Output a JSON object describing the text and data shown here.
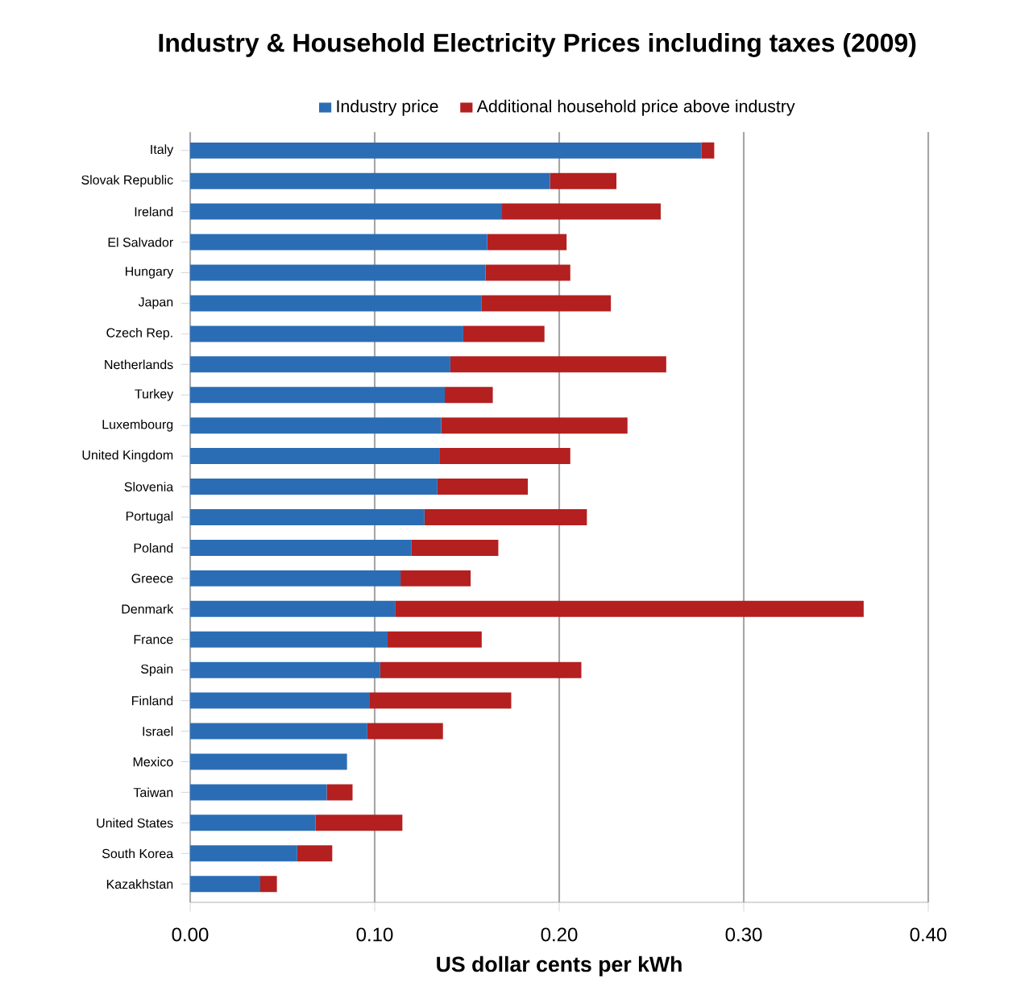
{
  "chart_data": {
    "type": "bar",
    "orientation": "horizontal",
    "stacked": true,
    "title": "Industry & Household Electricity Prices including taxes (2009)",
    "xlabel": "US dollar cents per kWh",
    "categories": [
      "Italy",
      "Slovak Republic",
      "Ireland",
      "El Salvador",
      "Hungary",
      "Japan",
      "Czech Rep.",
      "Netherlands",
      "Turkey",
      "Luxembourg",
      "United Kingdom",
      "Slovenia",
      "Portugal",
      "Poland",
      "Greece",
      "Denmark",
      "France",
      "Spain",
      "Finland",
      "Israel",
      "Mexico",
      "Taiwan",
      "United States",
      "South Korea",
      "Kazakhstan"
    ],
    "series": [
      {
        "name": "Industry price",
        "color": "#2a6db5",
        "values": [
          0.277,
          0.195,
          0.169,
          0.161,
          0.16,
          0.158,
          0.148,
          0.141,
          0.138,
          0.136,
          0.135,
          0.134,
          0.127,
          0.12,
          0.114,
          0.111,
          0.107,
          0.103,
          0.097,
          0.096,
          0.085,
          0.074,
          0.068,
          0.058,
          0.038
        ]
      },
      {
        "name": "Additional household price above industry",
        "color": "#b41f1f",
        "values": [
          0.007,
          0.036,
          0.086,
          0.043,
          0.046,
          0.07,
          0.044,
          0.117,
          0.026,
          0.101,
          0.071,
          0.049,
          0.088,
          0.047,
          0.038,
          0.254,
          0.051,
          0.109,
          0.077,
          0.041,
          0,
          0.014,
          0.047,
          0.019,
          0.009
        ]
      }
    ],
    "xlim": [
      0,
      0.4
    ],
    "xticks": [
      {
        "value": 0,
        "label": "0.00"
      },
      {
        "value": 0.1,
        "label": "0.10"
      },
      {
        "value": 0.2,
        "label": "0.20"
      },
      {
        "value": 0.3,
        "label": "0.30"
      },
      {
        "value": 0.4,
        "label": "0.40"
      }
    ],
    "grid": "x",
    "legend": "top"
  }
}
